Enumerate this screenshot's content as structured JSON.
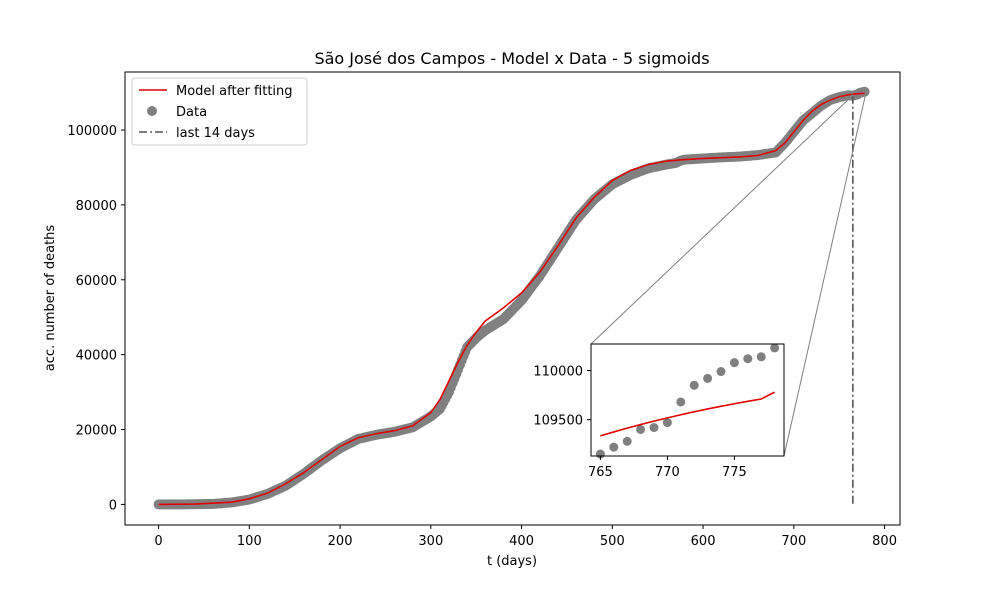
{
  "chart_data": {
    "type": "scatter",
    "title": "São José dos Campos - Model x Data - 5 sigmoids",
    "xlabel": "t (days)",
    "ylabel": "acc. number of deaths",
    "xlim": [
      -37,
      817
    ],
    "ylim": [
      -5500,
      115500
    ],
    "xticks": [
      0,
      100,
      200,
      300,
      400,
      500,
      600,
      700,
      800
    ],
    "yticks": [
      0,
      20000,
      40000,
      60000,
      80000,
      100000
    ],
    "grid": false,
    "legend": {
      "placement": "top-left",
      "entries": [
        {
          "label": "Model after fitting",
          "kind": "line",
          "color": "#e00000"
        },
        {
          "label": "Data",
          "kind": "marker",
          "color": "#808080"
        },
        {
          "label": "last 14 days",
          "kind": "dashdot",
          "color": "#555555"
        }
      ]
    },
    "last14_x": 765,
    "series": [
      {
        "name": "Model after fitting",
        "kind": "line",
        "color": "#e00000",
        "x": [
          0,
          40,
          80,
          100,
          120,
          140,
          160,
          180,
          200,
          220,
          240,
          260,
          280,
          300,
          310,
          320,
          330,
          340,
          350,
          360,
          380,
          400,
          420,
          440,
          460,
          480,
          500,
          520,
          540,
          560,
          580,
          600,
          620,
          640,
          660,
          680,
          690,
          700,
          710,
          720,
          730,
          740,
          750,
          760,
          770,
          778
        ],
        "y": [
          0,
          100,
          600,
          1500,
          3000,
          5500,
          8500,
          12000,
          15500,
          17800,
          18900,
          19700,
          21000,
          24500,
          28000,
          33000,
          38000,
          42500,
          46000,
          49000,
          52500,
          56500,
          62000,
          69000,
          76500,
          82000,
          86500,
          89200,
          90800,
          91700,
          92100,
          92400,
          92600,
          92800,
          93200,
          94500,
          96500,
          99500,
          102500,
          105000,
          106800,
          108000,
          108900,
          109400,
          109700,
          109780
        ]
      },
      {
        "name": "Data",
        "kind": "scatter",
        "color": "#808080",
        "x": [
          0,
          20,
          40,
          60,
          80,
          100,
          120,
          140,
          160,
          180,
          200,
          220,
          240,
          260,
          280,
          300,
          310,
          320,
          330,
          340,
          350,
          360,
          380,
          400,
          420,
          440,
          460,
          480,
          500,
          520,
          540,
          560,
          570,
          575,
          580,
          600,
          620,
          640,
          660,
          680,
          690,
          700,
          710,
          720,
          730,
          740,
          750,
          760,
          765,
          766,
          767,
          768,
          769,
          770,
          771,
          772,
          773,
          774,
          775,
          776,
          777,
          778
        ],
        "y": [
          0,
          0,
          50,
          150,
          500,
          1300,
          2800,
          5000,
          8200,
          11800,
          15000,
          17500,
          18600,
          19400,
          20600,
          23500,
          25500,
          30000,
          36000,
          42000,
          44500,
          46500,
          49500,
          54500,
          61000,
          68500,
          76000,
          81500,
          85500,
          88000,
          89800,
          90800,
          91200,
          91800,
          92100,
          92400,
          92700,
          92900,
          93300,
          94000,
          96500,
          99500,
          102500,
          104500,
          106500,
          108000,
          108800,
          109300,
          109150,
          109220,
          109280,
          109400,
          109420,
          109470,
          109680,
          109850,
          109920,
          109990,
          110080,
          110120,
          110140,
          110230
        ]
      }
    ],
    "inset": {
      "xlim": [
        764.3,
        778.7
      ],
      "ylim": [
        109130,
        110270
      ],
      "xticks": [
        765,
        770,
        775
      ],
      "yticks": [
        109500,
        110000
      ],
      "model_x": [
        765,
        766,
        767,
        768,
        769,
        770,
        771,
        772,
        773,
        774,
        775,
        776,
        777,
        778
      ],
      "model_y": [
        109335,
        109375,
        109414,
        109450,
        109485,
        109518,
        109550,
        109580,
        109609,
        109636,
        109662,
        109687,
        109710,
        109780
      ],
      "data_x": [
        765,
        766,
        767,
        768,
        769,
        770,
        771,
        772,
        773,
        774,
        775,
        776,
        777,
        778
      ],
      "data_y": [
        109150,
        109220,
        109280,
        109400,
        109420,
        109470,
        109680,
        109850,
        109920,
        109990,
        110080,
        110120,
        110140,
        110230
      ]
    }
  }
}
